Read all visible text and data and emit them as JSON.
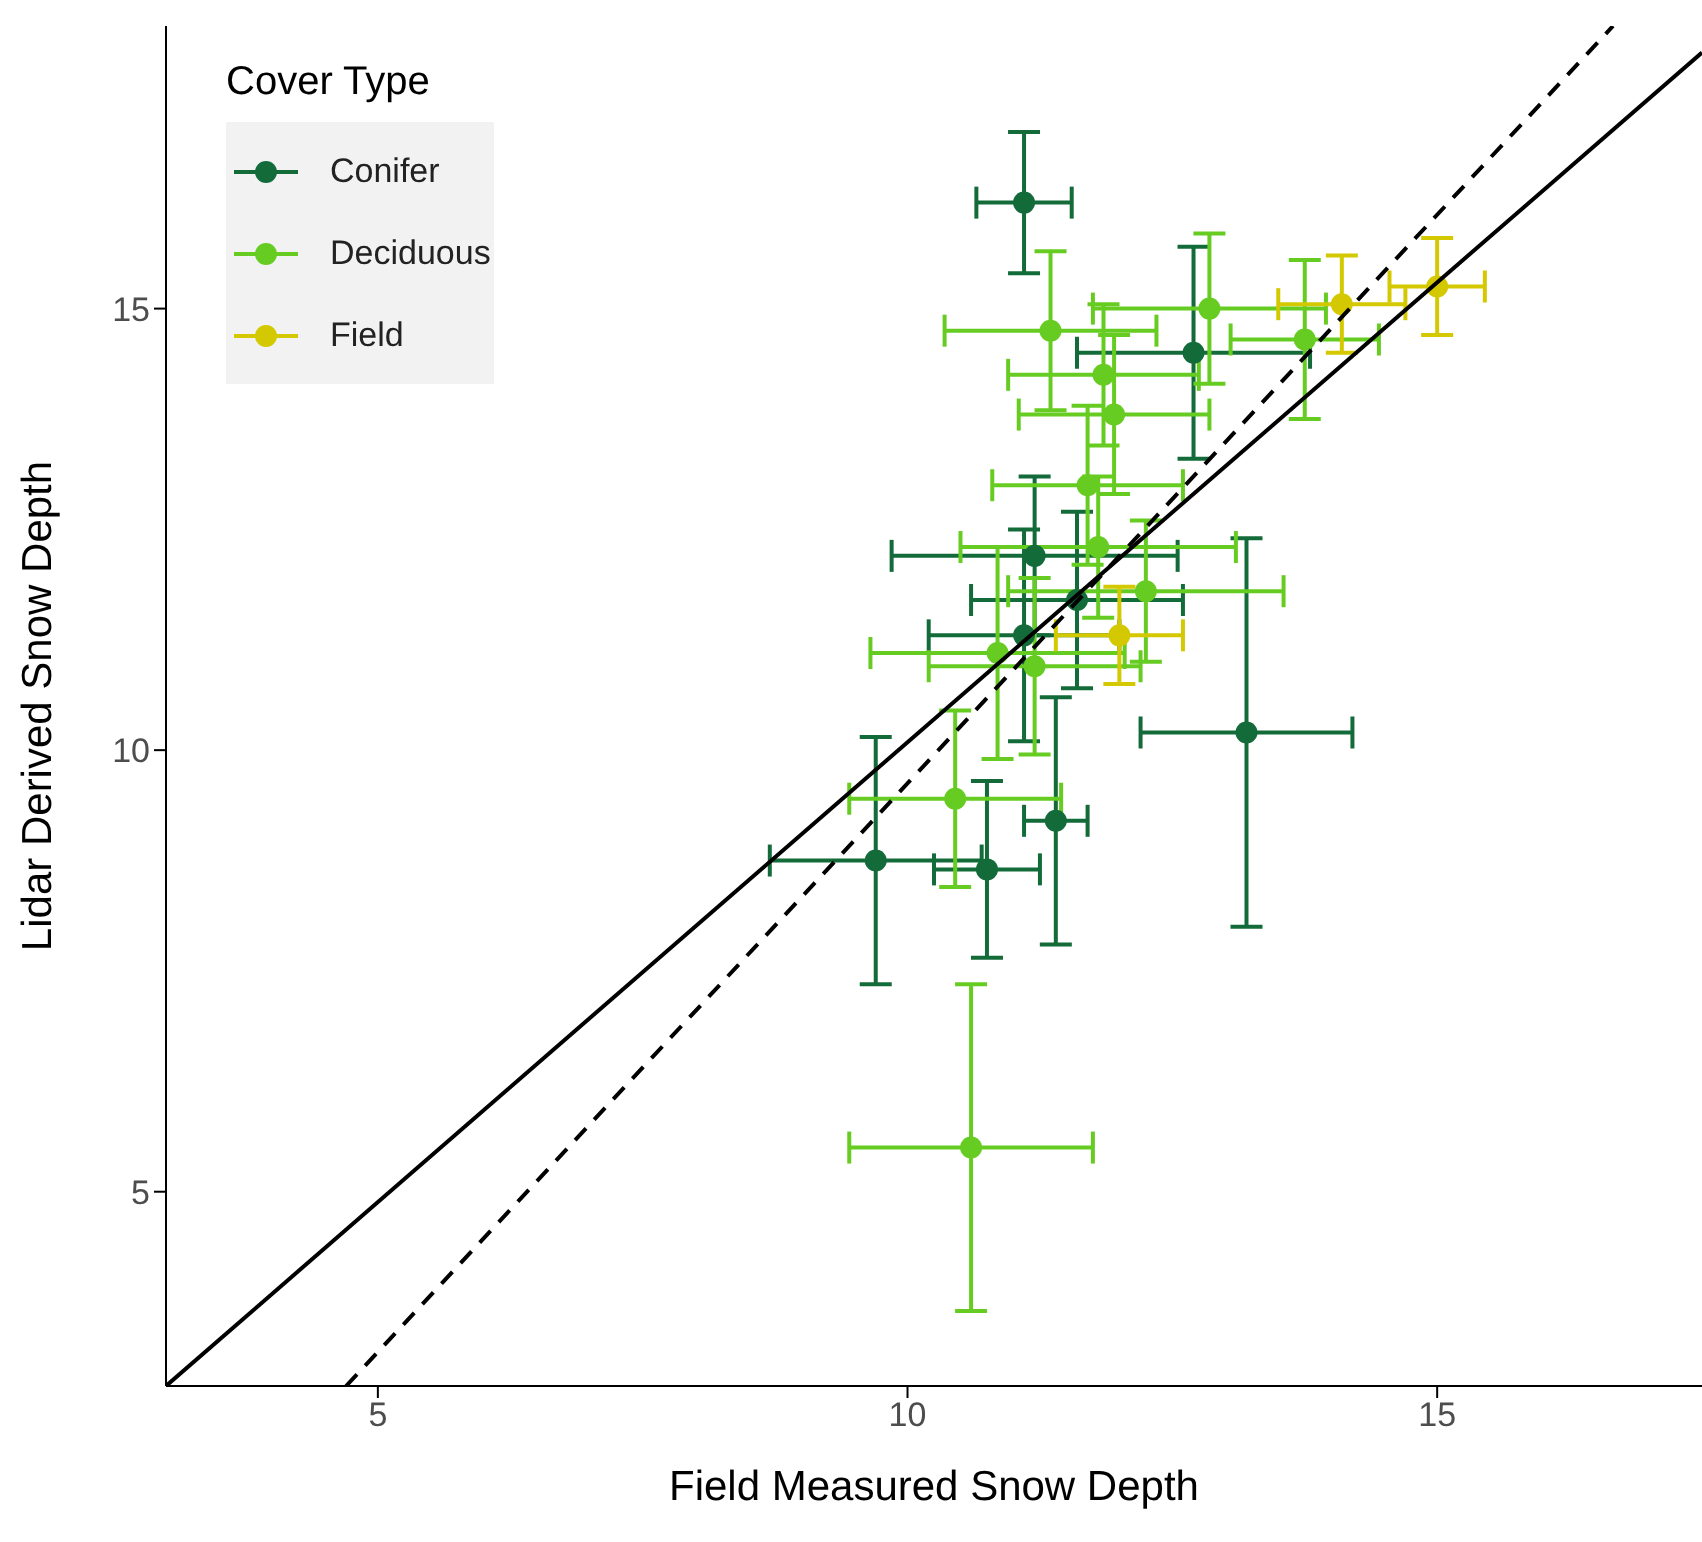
{
  "chart_data": {
    "type": "scatter",
    "xlabel": "Field Measured Snow Depth",
    "ylabel": "Lidar Derived Snow Depth",
    "legend_title": "Cover Type",
    "legend": "top left",
    "marker": "circle",
    "xlim": [
      3,
      17.5
    ],
    "ylim": [
      2.8,
      18.2
    ],
    "xticks": [
      5,
      10,
      15
    ],
    "yticks": [
      5,
      10,
      15
    ],
    "series": [
      {
        "name": "Conifer",
        "color": "#146b3a",
        "x": [
          11.1,
          12.7,
          11.2,
          11.6,
          11.1,
          13.2,
          9.7,
          10.75,
          11.4
        ],
        "values": [
          16.2,
          14.5,
          12.2,
          11.7,
          11.3,
          10.2,
          8.75,
          8.65,
          9.2
        ],
        "xerrors": [
          0.45,
          1.1,
          1.35,
          1.0,
          0.9,
          1.0,
          1.0,
          0.5,
          0.3
        ],
        "errors": [
          0.8,
          1.2,
          0.9,
          1.0,
          1.2,
          2.2,
          1.4,
          1.0,
          1.4
        ]
      },
      {
        "name": "Deciduous",
        "color": "#66cc22",
        "x": [
          11.35,
          12.85,
          11.85,
          11.95,
          13.75,
          11.7,
          11.8,
          12.25,
          10.85,
          11.2,
          10.45,
          10.6
        ],
        "values": [
          14.75,
          15.0,
          14.25,
          13.8,
          14.65,
          13.0,
          12.3,
          11.8,
          11.1,
          10.95,
          9.45,
          5.5
        ],
        "xerrors": [
          1.0,
          1.1,
          0.9,
          0.9,
          0.7,
          0.9,
          1.3,
          1.3,
          1.2,
          1.0,
          1.0,
          1.15
        ],
        "errors": [
          0.9,
          0.85,
          0.8,
          0.9,
          0.9,
          0.9,
          0.8,
          0.8,
          1.2,
          1.0,
          1.0,
          1.85
        ]
      },
      {
        "name": "Field",
        "color": "#d4c800",
        "x": [
          15.0,
          14.1,
          12.0
        ],
        "values": [
          15.25,
          15.05,
          11.3
        ],
        "xerrors": [
          0.45,
          0.6,
          0.6
        ],
        "errors": [
          0.55,
          0.55,
          0.55
        ]
      },
      {
        "type": "line",
        "color": "#000000",
        "line_style": "solid",
        "marker": "none",
        "x": [
          3,
          17.5
        ],
        "values": [
          2.8,
          17.9
        ]
      },
      {
        "type": "line",
        "color": "#000000",
        "line_style": "dashed",
        "marker": "none",
        "x": [
          4.7,
          16.66
        ],
        "values": [
          2.8,
          18.2
        ]
      }
    ]
  }
}
